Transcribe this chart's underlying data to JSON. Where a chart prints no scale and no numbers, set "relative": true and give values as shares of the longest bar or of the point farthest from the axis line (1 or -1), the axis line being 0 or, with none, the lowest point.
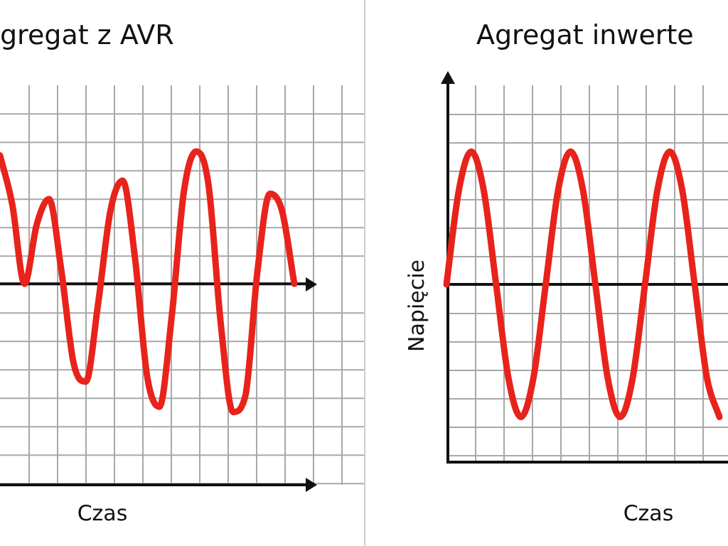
{
  "chart_data": [
    {
      "type": "line",
      "title": "gregat z AVR",
      "xlabel": "Czas",
      "categories": [
        null,
        null,
        null,
        null,
        null,
        null,
        null,
        null,
        null,
        null,
        null,
        null,
        null,
        null,
        null,
        null,
        null,
        null,
        null,
        null,
        null,
        null,
        null,
        null,
        null
      ],
      "relative": true,
      "grid": true,
      "legend": false,
      "tick_labels": false,
      "series": [
        {
          "color": "#e8231b",
          "values": [
            0.97,
            0.6,
            0,
            0.45,
            0.64,
            0.1,
            -0.6,
            -0.74,
            -0.15,
            0.55,
            0.78,
            0.2,
            -0.7,
            -0.93,
            -0.25,
            0.7,
            1,
            0.75,
            -0.3,
            -0.97,
            -0.85,
            0.1,
            0.68,
            0.55,
            0
          ]
        }
      ]
    },
    {
      "type": "line",
      "title": "Agregat inwerte",
      "xlabel": "Czas",
      "ylabel": "Napięcie",
      "categories": [
        null,
        null,
        null,
        null,
        null,
        null,
        null,
        null,
        null,
        null,
        null,
        null,
        null,
        null,
        null,
        null,
        null,
        null,
        null,
        null,
        null,
        null,
        null
      ],
      "relative": true,
      "grid": true,
      "legend": false,
      "tick_labels": false,
      "series": [
        {
          "color": "#e8231b",
          "values": [
            0,
            0.71,
            1,
            0.71,
            0,
            -0.71,
            -1,
            -0.71,
            0,
            0.71,
            1,
            0.71,
            0,
            -0.71,
            -1,
            -0.71,
            0,
            0.71,
            1,
            0.71,
            0,
            -0.71,
            -1
          ]
        }
      ]
    }
  ]
}
